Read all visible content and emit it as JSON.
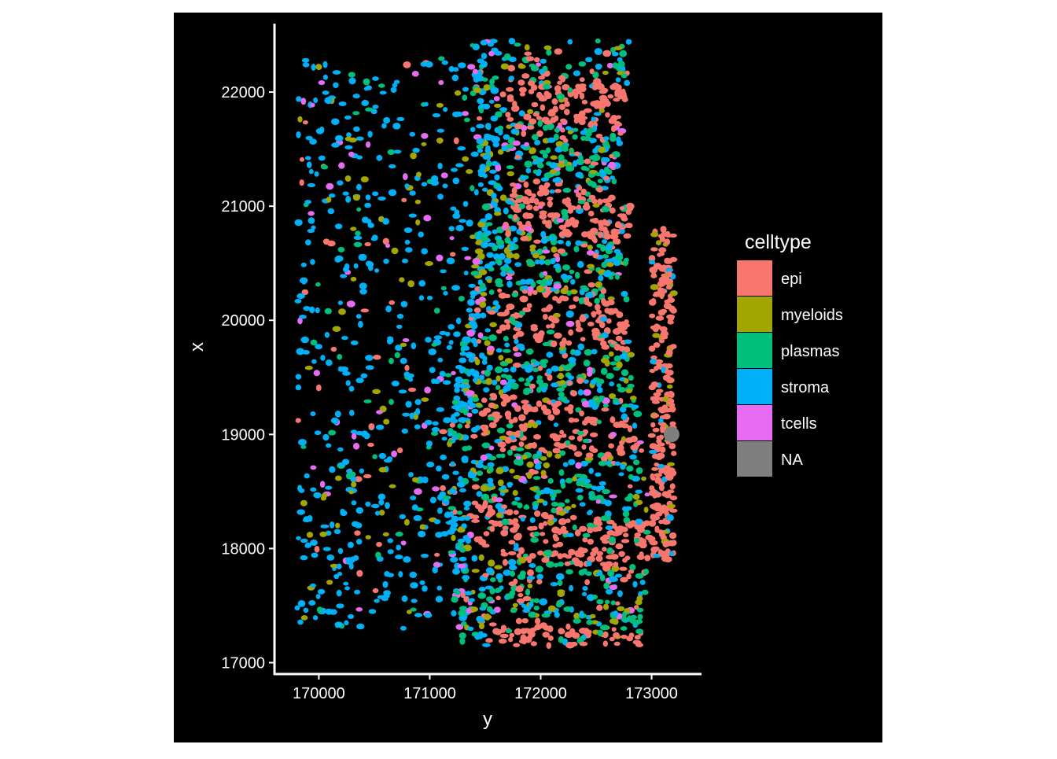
{
  "chart_data": {
    "type": "scatter",
    "xlabel": "y",
    "ylabel": "x",
    "xlim": [
      169600,
      173450
    ],
    "ylim": [
      16900,
      22600
    ],
    "x_ticks": [
      "170000",
      "171000",
      "172000",
      "173000"
    ],
    "y_ticks": [
      "17000",
      "18000",
      "19000",
      "20000",
      "21000",
      "22000"
    ],
    "grid": false,
    "background": "#000000",
    "legend": {
      "title": "celltype",
      "position": "right",
      "entries": [
        {
          "name": "epi",
          "color": "#F8766D"
        },
        {
          "name": "myeloids",
          "color": "#A3A500"
        },
        {
          "name": "plasmas",
          "color": "#00BF7D"
        },
        {
          "name": "stroma",
          "color": "#00B0F6"
        },
        {
          "name": "tcells",
          "color": "#E76BF3"
        },
        {
          "name": "NA",
          "color": "#7F7F7F"
        }
      ]
    },
    "note_points": [
      {
        "x": 173180,
        "y": 19000,
        "celltype": "NA"
      }
    ]
  }
}
